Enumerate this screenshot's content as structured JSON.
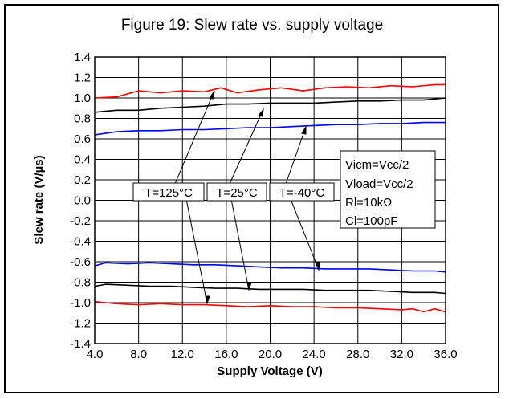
{
  "chart_data": {
    "type": "line",
    "title": "Figure 19: Slew rate vs. supply voltage",
    "xlabel": "Supply Voltage (V)",
    "ylabel": "Slew rate (V/µs)",
    "xlim": [
      4,
      36
    ],
    "ylim": [
      -1.4,
      1.4
    ],
    "x_ticks": [
      4,
      8,
      12,
      16,
      20,
      24,
      28,
      32,
      36
    ],
    "x_tick_labels": [
      "4.0",
      "8.0",
      "12.0",
      "16.0",
      "20.0",
      "24.0",
      "28.0",
      "32.0",
      "36.0"
    ],
    "y_ticks": [
      1.4,
      1.2,
      1.0,
      0.8,
      0.6,
      0.4,
      0.2,
      0.0,
      -0.2,
      -0.4,
      -0.6,
      -0.8,
      -1.0,
      -1.2,
      -1.4
    ],
    "y_tick_labels": [
      "1.4",
      "1.2",
      "1.0",
      "0.8",
      "0.6",
      "0.4",
      "0.2",
      "0.0",
      "-0.2",
      "-0.4",
      "-0.6",
      "-0.8",
      "-1.0",
      "-1.2",
      "-1.4"
    ],
    "grid": true,
    "series": [
      {
        "color": "#ff0000",
        "x": [
          4,
          6,
          8,
          10,
          12,
          14,
          15.5,
          17,
          19,
          21,
          23,
          25,
          27,
          29,
          31,
          33,
          35,
          36
        ],
        "values": [
          1.0,
          1.01,
          1.07,
          1.05,
          1.07,
          1.06,
          1.1,
          1.05,
          1.08,
          1.1,
          1.07,
          1.1,
          1.11,
          1.1,
          1.12,
          1.11,
          1.13,
          1.13
        ]
      },
      {
        "color": "#000000",
        "x": [
          4,
          6,
          8,
          10,
          12,
          14,
          16,
          18,
          20,
          22,
          24,
          26,
          28,
          30,
          32,
          34,
          36
        ],
        "values": [
          0.86,
          0.88,
          0.88,
          0.9,
          0.91,
          0.92,
          0.94,
          0.94,
          0.95,
          0.95,
          0.95,
          0.96,
          0.97,
          0.97,
          0.98,
          0.98,
          1.0
        ]
      },
      {
        "color": "#0000ff",
        "x": [
          4,
          6,
          8,
          10,
          12,
          14,
          16,
          18,
          20,
          22,
          24,
          26,
          28,
          30,
          32,
          34,
          36
        ],
        "values": [
          0.64,
          0.67,
          0.68,
          0.68,
          0.69,
          0.69,
          0.7,
          0.71,
          0.71,
          0.72,
          0.73,
          0.74,
          0.74,
          0.75,
          0.75,
          0.76,
          0.76
        ]
      },
      {
        "color": "#0000ff",
        "x": [
          4,
          5,
          7,
          9,
          11,
          13,
          15,
          17,
          19,
          21,
          23,
          25,
          27,
          29,
          31,
          33,
          35,
          36
        ],
        "values": [
          -0.64,
          -0.61,
          -0.62,
          -0.61,
          -0.62,
          -0.63,
          -0.63,
          -0.64,
          -0.65,
          -0.66,
          -0.66,
          -0.67,
          -0.67,
          -0.67,
          -0.68,
          -0.69,
          -0.69,
          -0.7
        ]
      },
      {
        "color": "#000000",
        "x": [
          4,
          5,
          7,
          9,
          11,
          13,
          15,
          17,
          19,
          21,
          23,
          25,
          27,
          29,
          31,
          33,
          35,
          36
        ],
        "values": [
          -0.84,
          -0.82,
          -0.83,
          -0.84,
          -0.84,
          -0.85,
          -0.86,
          -0.86,
          -0.87,
          -0.87,
          -0.87,
          -0.88,
          -0.88,
          -0.88,
          -0.89,
          -0.9,
          -0.9,
          -0.91
        ]
      },
      {
        "color": "#ff0000",
        "x": [
          4,
          6,
          8,
          10,
          12,
          14,
          16,
          18,
          20,
          22,
          24,
          26,
          28,
          30,
          32,
          33,
          34,
          35,
          36
        ],
        "values": [
          -0.99,
          -1.01,
          -1.02,
          -1.01,
          -1.02,
          -1.02,
          -1.03,
          -1.04,
          -1.03,
          -1.04,
          -1.04,
          -1.05,
          -1.05,
          -1.06,
          -1.07,
          -1.06,
          -1.09,
          -1.06,
          -1.09
        ]
      }
    ],
    "annotations": {
      "labels": [
        "T=125°C",
        "T=25°C",
        "T=-40°C"
      ],
      "conditions": [
        "Vicm=Vcc/2",
        "Vload=Vcc/2",
        "Rl=10kΩ",
        "Cl=100pF"
      ]
    }
  }
}
